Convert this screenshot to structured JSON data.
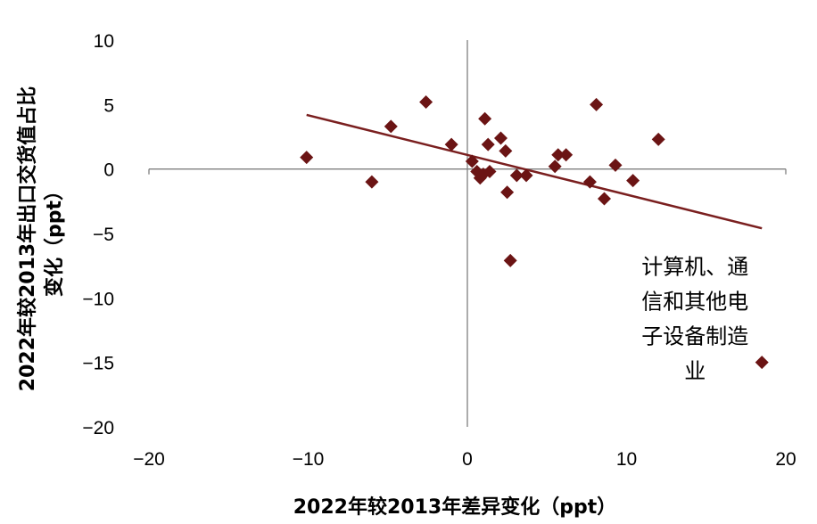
{
  "chart_data": {
    "type": "scatter",
    "xlabel": "2022年较2013年差异变化（ppt）",
    "ylabel_lines": [
      "2022年较2013年出口交货值占比",
      "变化（ppt）"
    ],
    "xlim": [
      -20,
      20
    ],
    "ylim": [
      -20,
      10
    ],
    "x_ticks": [
      -20,
      -10,
      0,
      10,
      20
    ],
    "x_tick_labels": [
      "−20",
      "−10",
      "0",
      "10",
      "20"
    ],
    "y_ticks": [
      10,
      5,
      0,
      -5,
      -10,
      -15,
      -20
    ],
    "y_tick_labels": [
      "10",
      "5",
      "0",
      "−5",
      "−10",
      "−15",
      "−20"
    ],
    "grid": false,
    "legend": "none",
    "marker": "diamond",
    "colors": {
      "marker": "#6B1414",
      "trendline": "#7A1F1F",
      "axis": "#7F7F7F"
    },
    "points": [
      {
        "x": -10.1,
        "y": 0.9
      },
      {
        "x": -6.0,
        "y": -1.0
      },
      {
        "x": -4.8,
        "y": 3.3
      },
      {
        "x": -2.6,
        "y": 5.2
      },
      {
        "x": -1.0,
        "y": 1.9
      },
      {
        "x": 0.3,
        "y": 0.6
      },
      {
        "x": 0.6,
        "y": -0.2
      },
      {
        "x": 0.8,
        "y": -0.7
      },
      {
        "x": 1.0,
        "y": -0.4
      },
      {
        "x": 1.1,
        "y": 3.9
      },
      {
        "x": 1.3,
        "y": 1.9
      },
      {
        "x": 1.4,
        "y": -0.2
      },
      {
        "x": 2.1,
        "y": 2.4
      },
      {
        "x": 2.4,
        "y": 1.4
      },
      {
        "x": 2.5,
        "y": -1.8
      },
      {
        "x": 2.7,
        "y": -7.1
      },
      {
        "x": 3.1,
        "y": -0.5
      },
      {
        "x": 3.7,
        "y": -0.5
      },
      {
        "x": 5.5,
        "y": 0.2
      },
      {
        "x": 5.7,
        "y": 1.1
      },
      {
        "x": 6.2,
        "y": 1.1
      },
      {
        "x": 7.7,
        "y": -1.0
      },
      {
        "x": 8.1,
        "y": 5.0
      },
      {
        "x": 8.6,
        "y": -2.3
      },
      {
        "x": 9.3,
        "y": 0.3
      },
      {
        "x": 10.4,
        "y": -0.9
      },
      {
        "x": 12.0,
        "y": 2.3
      },
      {
        "x": 18.5,
        "y": -15.0
      }
    ],
    "trendline": {
      "x": [
        -10.1,
        18.5
      ],
      "y": [
        4.2,
        -4.6
      ]
    },
    "annotation": {
      "lines": [
        "计算机、通",
        "信和其他电",
        "子设备制造",
        "业"
      ],
      "x": 14.3,
      "y": -10.5
    }
  }
}
